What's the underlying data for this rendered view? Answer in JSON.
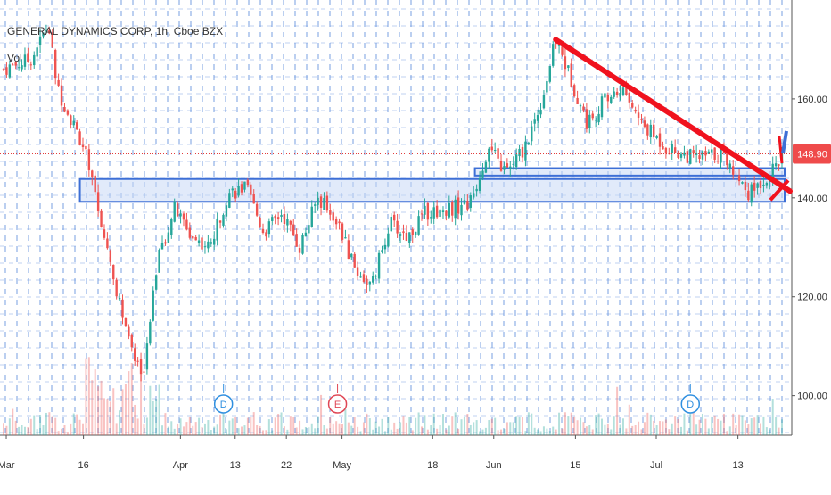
{
  "header": {
    "symbol_line": "GENERAL DYNAMICS CORP, 1h, Cboe BZX",
    "volume_label": "Vol"
  },
  "price_axis": {
    "ticks": [
      "160.00",
      "140.00",
      "120.00",
      "100.00"
    ],
    "last_price_label": "148.90"
  },
  "time_axis": {
    "ticks": [
      "Mar",
      "16",
      "Apr",
      "13",
      "22",
      "May",
      "18",
      "Jun",
      "15",
      "Jul",
      "13"
    ]
  },
  "event_markers": [
    {
      "letter": "D",
      "kind": "dividend",
      "color": "#2f8fe0"
    },
    {
      "letter": "E",
      "kind": "earnings",
      "color": "#e04755"
    },
    {
      "letter": "D",
      "kind": "dividend",
      "color": "#2f8fe0"
    }
  ],
  "colors": {
    "up": "#26a69a",
    "down": "#ef5350",
    "trendline": "#f0121e",
    "zone_border": "#3d6fd6",
    "zone_fill": "#c9d8f5",
    "grid": "#4a7fd8",
    "price_line": "#e23a3a",
    "price_label_bg": "#ef4b4b"
  },
  "chart_data": {
    "type": "candlestick",
    "title": "GENERAL DYNAMICS CORP, 1h, Cboe BZX",
    "ylim": [
      92,
      180
    ],
    "ylabel": "",
    "xlabel": "",
    "x_ticks": [
      "Mar",
      "16",
      "Apr",
      "13",
      "22",
      "May",
      "18",
      "Jun",
      "15",
      "Jul",
      "13"
    ],
    "y_ticks": [
      160,
      140,
      120,
      100
    ],
    "last_price": 148.9,
    "anchors": [
      {
        "t": 0,
        "p": 166
      },
      {
        "t": 3,
        "p": 168
      },
      {
        "t": 5,
        "p": 175
      },
      {
        "t": 6,
        "p": 162
      },
      {
        "t": 9,
        "p": 150
      },
      {
        "t": 10,
        "p": 142
      },
      {
        "t": 12,
        "p": 126
      },
      {
        "t": 14,
        "p": 110
      },
      {
        "t": 15.5,
        "p": 104
      },
      {
        "t": 17,
        "p": 126
      },
      {
        "t": 19,
        "p": 138
      },
      {
        "t": 21,
        "p": 132
      },
      {
        "t": 23,
        "p": 130
      },
      {
        "t": 25,
        "p": 141
      },
      {
        "t": 27,
        "p": 142
      },
      {
        "t": 29,
        "p": 133
      },
      {
        "t": 31,
        "p": 137
      },
      {
        "t": 33,
        "p": 130
      },
      {
        "t": 35,
        "p": 140
      },
      {
        "t": 37,
        "p": 136
      },
      {
        "t": 39,
        "p": 126
      },
      {
        "t": 41,
        "p": 122
      },
      {
        "t": 43,
        "p": 135
      },
      {
        "t": 45,
        "p": 132
      },
      {
        "t": 47,
        "p": 137
      },
      {
        "t": 50,
        "p": 138
      },
      {
        "t": 52,
        "p": 139
      },
      {
        "t": 54,
        "p": 150
      },
      {
        "t": 56,
        "p": 145
      },
      {
        "t": 58,
        "p": 150
      },
      {
        "t": 60,
        "p": 160
      },
      {
        "t": 61.5,
        "p": 172
      },
      {
        "t": 63,
        "p": 165
      },
      {
        "t": 65,
        "p": 155
      },
      {
        "t": 67,
        "p": 160
      },
      {
        "t": 69,
        "p": 162
      },
      {
        "t": 71,
        "p": 155
      },
      {
        "t": 74,
        "p": 150
      },
      {
        "t": 77,
        "p": 148
      },
      {
        "t": 80,
        "p": 149
      },
      {
        "t": 83,
        "p": 141
      },
      {
        "t": 86,
        "p": 146
      },
      {
        "t": 87,
        "p": 148.9
      }
    ],
    "trendline": {
      "from": {
        "t": 61.5,
        "p": 172
      },
      "to": {
        "t": 87,
        "p": 141
      }
    },
    "resistance_zones": [
      {
        "t_start": 8.5,
        "t_end": 87,
        "p_low": 139.2,
        "p_high": 143.8
      },
      {
        "t_start": 52.5,
        "t_end": 87,
        "p_low": 144.5,
        "p_high": 146.0
      }
    ],
    "event_times": [
      24.5,
      37.2,
      76.5
    ]
  }
}
